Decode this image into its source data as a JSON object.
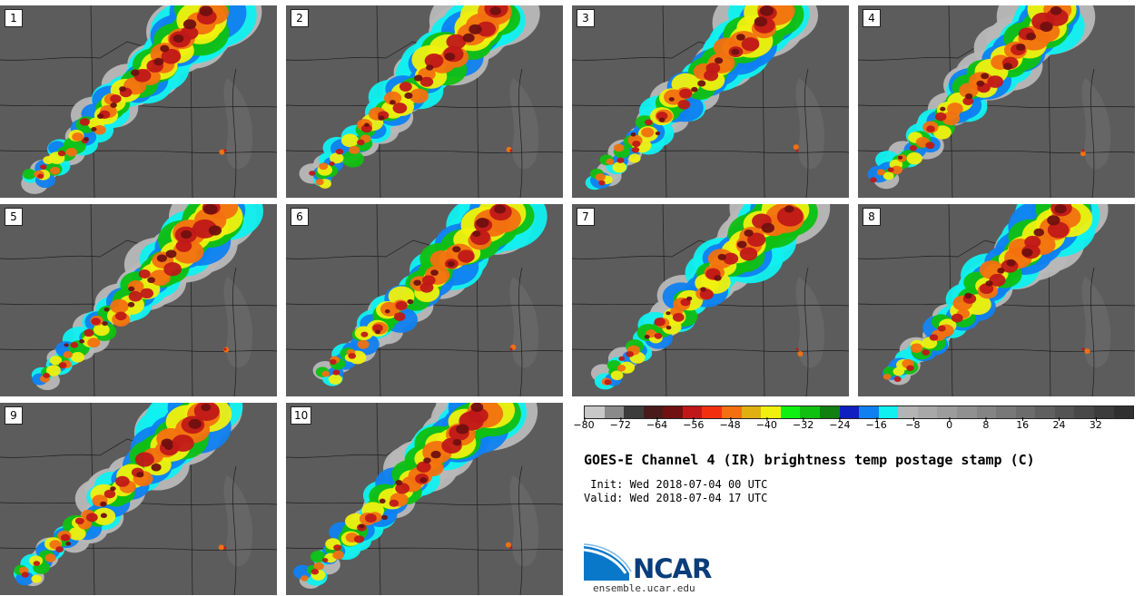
{
  "panels": [
    {
      "label": "1"
    },
    {
      "label": "2"
    },
    {
      "label": "3"
    },
    {
      "label": "4"
    },
    {
      "label": "5"
    },
    {
      "label": "6"
    },
    {
      "label": "7"
    },
    {
      "label": "8"
    },
    {
      "label": "9"
    },
    {
      "label": "10"
    }
  ],
  "colorbar": {
    "colors": [
      "#c8c8c8",
      "#8a8a8a",
      "#3c3c3c",
      "#4a1a1a",
      "#701010",
      "#c01818",
      "#f23010",
      "#f27010",
      "#e0b010",
      "#f0f010",
      "#10f010",
      "#10c010",
      "#108010",
      "#1020c0",
      "#1080f0",
      "#10f0f0",
      "#b4b4b4",
      "#a8a8a8",
      "#9c9c9c",
      "#909090",
      "#848484",
      "#787878",
      "#6c6c6c",
      "#606060",
      "#545454",
      "#484848",
      "#3c3c3c",
      "#303030"
    ],
    "ticks": [
      "−80",
      "−72",
      "−64",
      "−56",
      "−48",
      "−40",
      "−32",
      "−24",
      "−16",
      "−8",
      "0",
      "8",
      "16",
      "24",
      "32"
    ]
  },
  "title": "GOES-E Channel 4 (IR) brightness temp postage stamp (C)",
  "init": " Init: Wed 2018-07-04 00 UTC",
  "valid": "Valid: Wed 2018-07-04 17 UTC",
  "logo": {
    "word": "NCAR",
    "url": "ensemble.ucar.edu"
  }
}
